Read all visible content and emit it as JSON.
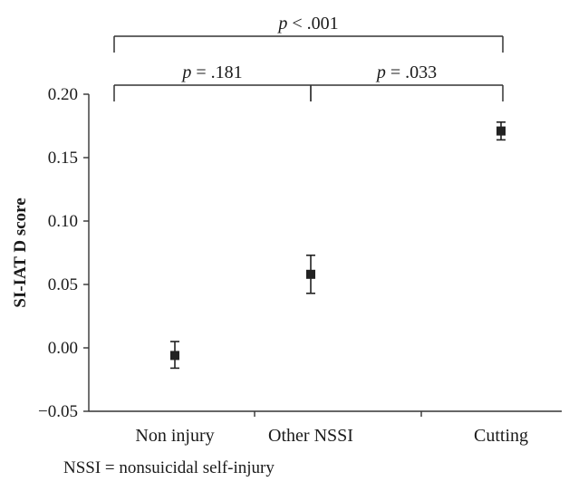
{
  "chart_data": {
    "type": "scatter",
    "title": "",
    "xlabel": "",
    "ylabel": "SI-IAT D score",
    "ylim": [
      -0.05,
      0.2
    ],
    "yticks": [
      -0.05,
      0.0,
      0.05,
      0.1,
      0.15,
      0.2
    ],
    "ytick_labels": [
      "−0.05",
      "0.00",
      "0.05",
      "0.10",
      "0.15",
      "0.20"
    ],
    "categories": [
      "Non injury",
      "Other NSSI",
      "Cutting"
    ],
    "values": [
      -0.006,
      0.058,
      0.171
    ],
    "error_low": [
      -0.016,
      0.043,
      0.164
    ],
    "error_high": [
      0.005,
      0.073,
      0.178
    ],
    "grid": false,
    "comparisons": [
      {
        "italic": "p",
        "rest": " = .181",
        "from": 0,
        "to": 1,
        "level": 1
      },
      {
        "italic": "p",
        "rest": " = .033",
        "from": 1,
        "to": 2,
        "level": 1
      },
      {
        "italic": "p",
        "rest": " < .001",
        "from": 0,
        "to": 2,
        "level": 2
      }
    ]
  },
  "footnote": "NSSI = nonsuicidal self-injury",
  "colors": {
    "marker": "#222222",
    "axis": "#333333"
  }
}
